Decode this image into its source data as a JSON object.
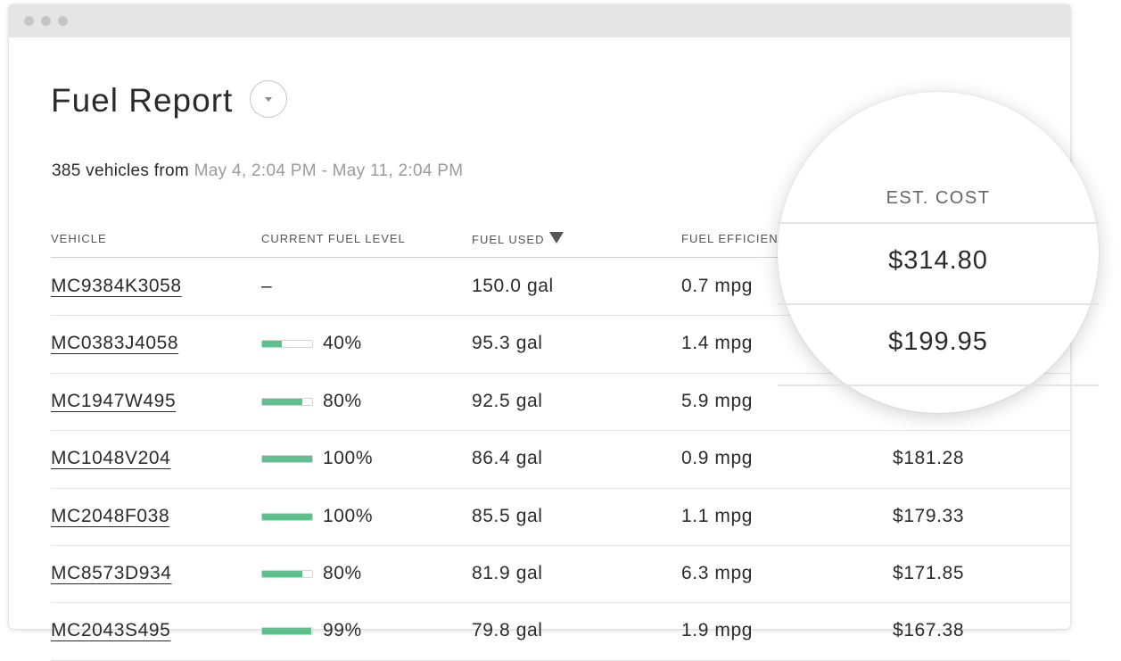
{
  "colors": {
    "accent": "#5ec08c",
    "text": "#2b2b2b",
    "muted": "#9b9b9b",
    "titlebar": "#e5e5e5"
  },
  "window": {
    "control_dots": [
      "window-dot",
      "window-dot",
      "window-dot"
    ]
  },
  "page": {
    "title": "Fuel Report",
    "title_menu_icon": "chevron-down-icon",
    "summary_count": "385 vehicles from",
    "summary_range": "May 4, 2:04 PM - May 11, 2:04 PM"
  },
  "table": {
    "columns": [
      {
        "key": "vehicle",
        "label": "VEHICLE"
      },
      {
        "key": "fuel_level",
        "label": "CURRENT FUEL LEVEL"
      },
      {
        "key": "fuel_used",
        "label": "FUEL USED",
        "sorted": "desc",
        "sort_icon": "sort-descending-icon"
      },
      {
        "key": "fuel_efficiency",
        "label": "FUEL EFFICIEN"
      },
      {
        "key": "est_cost",
        "label": "EST. COST"
      }
    ],
    "rows": [
      {
        "vehicle": "MC9384K3058",
        "fuel_level": null,
        "fuel_level_text": "–",
        "fuel_used": "150.0 gal",
        "efficiency": "0.7 mpg",
        "cost": "$314.80"
      },
      {
        "vehicle": "MC0383J4058",
        "fuel_level": 0.4,
        "fuel_level_text": "40%",
        "fuel_used": "95.3 gal",
        "efficiency": "1.4 mpg",
        "cost": "$199.95"
      },
      {
        "vehicle": "MC1947W495",
        "fuel_level": 0.8,
        "fuel_level_text": "80%",
        "fuel_used": "92.5 gal",
        "efficiency": "5.9 mpg",
        "cost": ""
      },
      {
        "vehicle": "MC1048V204",
        "fuel_level": 1.0,
        "fuel_level_text": "100%",
        "fuel_used": "86.4 gal",
        "efficiency": "0.9 mpg",
        "cost": "$181.28"
      },
      {
        "vehicle": "MC2048F038",
        "fuel_level": 1.0,
        "fuel_level_text": "100%",
        "fuel_used": "85.5 gal",
        "efficiency": "1.1 mpg",
        "cost": "$179.33"
      },
      {
        "vehicle": "MC8573D934",
        "fuel_level": 0.8,
        "fuel_level_text": "80%",
        "fuel_used": "81.9 gal",
        "efficiency": "6.3 mpg",
        "cost": "$171.85"
      },
      {
        "vehicle": "MC2043S495",
        "fuel_level": 0.99,
        "fuel_level_text": "99%",
        "fuel_used": "79.8 gal",
        "efficiency": "1.9 mpg",
        "cost": "$167.38"
      }
    ]
  },
  "magnifier": {
    "header": "EST. COST",
    "values": [
      "$314.80",
      "$199.95"
    ]
  }
}
